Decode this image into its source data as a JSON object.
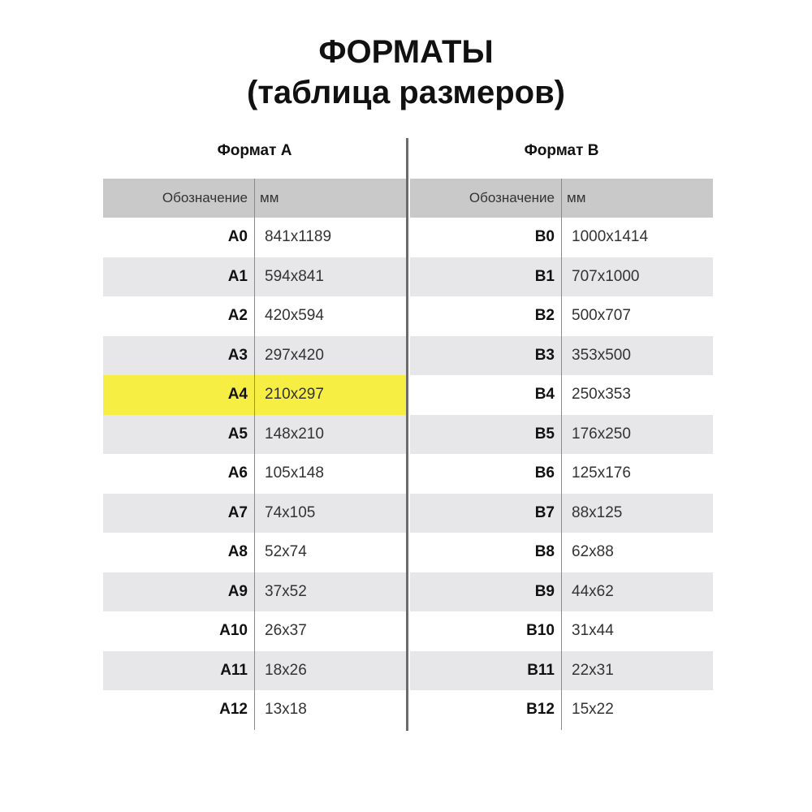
{
  "title": "ФОРМАТЫ",
  "subtitle": "(таблица размеров)",
  "highlight_color": "#f7ee43",
  "tables": [
    {
      "caption": "Формат А",
      "headers": [
        "Обозначение",
        "мм"
      ],
      "rows": [
        [
          "A0",
          "841x1189"
        ],
        [
          "A1",
          "594x841"
        ],
        [
          "A2",
          "420x594"
        ],
        [
          "A3",
          "297x420"
        ],
        [
          "A4",
          "210x297"
        ],
        [
          "A5",
          "148x210"
        ],
        [
          "A6",
          "105x148"
        ],
        [
          "A7",
          "74x105"
        ],
        [
          "A8",
          "52x74"
        ],
        [
          "A9",
          "37x52"
        ],
        [
          "A10",
          "26x37"
        ],
        [
          "A11",
          "18x26"
        ],
        [
          "A12",
          "13x18"
        ]
      ],
      "highlighted_row": "A4"
    },
    {
      "caption": "Формат В",
      "headers": [
        "Обозначение",
        "мм"
      ],
      "rows": [
        [
          "B0",
          "1000x1414"
        ],
        [
          "B1",
          "707x1000"
        ],
        [
          "B2",
          "500x707"
        ],
        [
          "B3",
          "353x500"
        ],
        [
          "B4",
          "250x353"
        ],
        [
          "B5",
          "176x250"
        ],
        [
          "B6",
          "125x176"
        ],
        [
          "B7",
          "88x125"
        ],
        [
          "B8",
          "62x88"
        ],
        [
          "B9",
          "44x62"
        ],
        [
          "B10",
          "31x44"
        ],
        [
          "B11",
          "22x31"
        ],
        [
          "B12",
          "15x22"
        ]
      ]
    }
  ]
}
